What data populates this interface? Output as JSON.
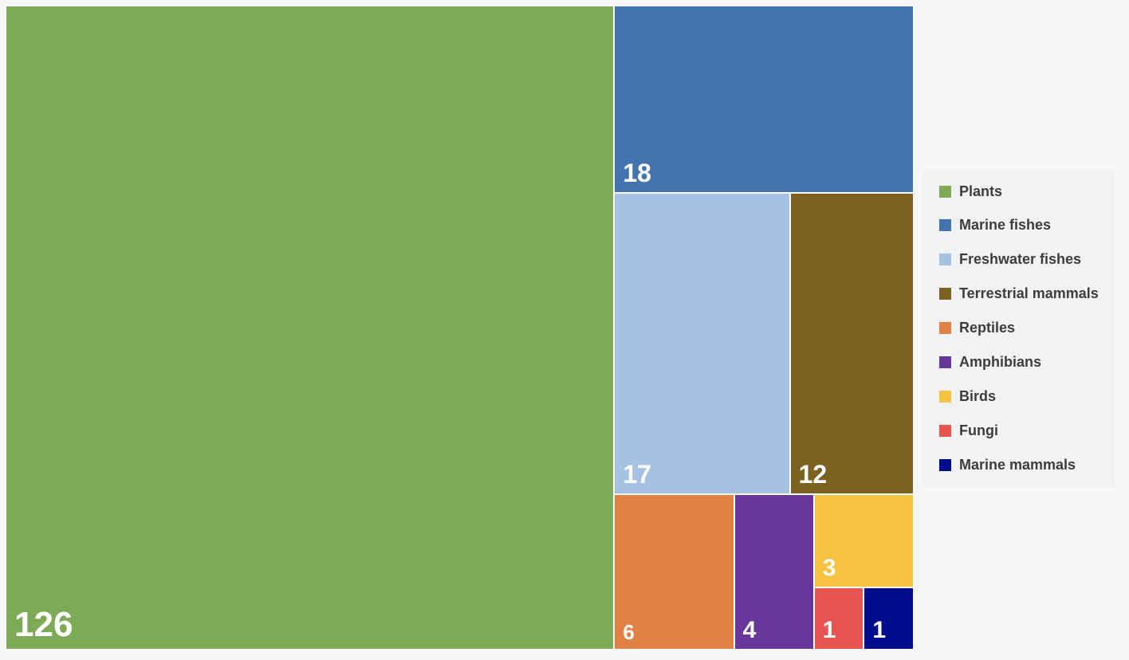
{
  "chart_data": {
    "type": "treemap",
    "legend_position": "right",
    "categories": [
      "Plants",
      "Marine fishes",
      "Freshwater fishes",
      "Terrestrial mammals",
      "Reptiles",
      "Amphibians",
      "Birds",
      "Fungi",
      "Marine mammals"
    ],
    "values": [
      126,
      18,
      17,
      12,
      6,
      4,
      3,
      1,
      1
    ],
    "colors": [
      "#7faa55",
      "#4274b0",
      "#a6c2e2",
      "#7d6120",
      "#e08145",
      "#68379a",
      "#f5c242",
      "#e85550",
      "#000e8e"
    ]
  }
}
